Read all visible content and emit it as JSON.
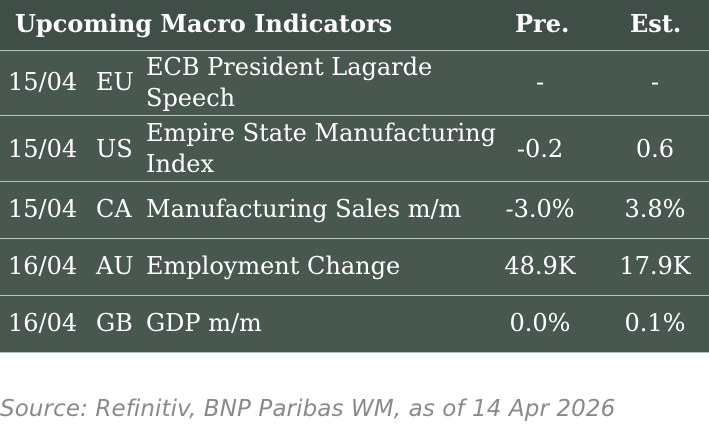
{
  "table": {
    "headers": {
      "title": "Upcoming Macro Indicators",
      "previous": "Pre.",
      "estimate": "Est."
    },
    "rows": [
      {
        "date": "15/04",
        "region": "EU",
        "indicator_line1": "ECB President Lagarde",
        "indicator_line2": "Speech",
        "previous": "-",
        "estimate": "-"
      },
      {
        "date": "15/04",
        "region": "US",
        "indicator_line1": "Empire State Manufacturing",
        "indicator_line2": "Index",
        "previous": "-0.2",
        "estimate": "0.6"
      },
      {
        "date": "15/04",
        "region": "CA",
        "indicator_line1": "Manufacturing Sales m/m",
        "indicator_line2": "",
        "previous": "-3.0%",
        "estimate": "3.8%"
      },
      {
        "date": "16/04",
        "region": "AU",
        "indicator_line1": "Employment Change",
        "indicator_line2": "",
        "previous": "48.9K",
        "estimate": "17.9K"
      },
      {
        "date": "16/04",
        "region": "GB",
        "indicator_line1": "GDP m/m",
        "indicator_line2": "",
        "previous": "0.0%",
        "estimate": "0.1%"
      }
    ]
  },
  "source": "Source: Refinitiv, BNP Paribas WM, as of 14 Apr 2026",
  "colors": {
    "panel": "#48584f",
    "header": "#3f4f47",
    "divider": "#b9c3bd",
    "text": "#ffffff",
    "source_text": "#8a8a8a"
  }
}
